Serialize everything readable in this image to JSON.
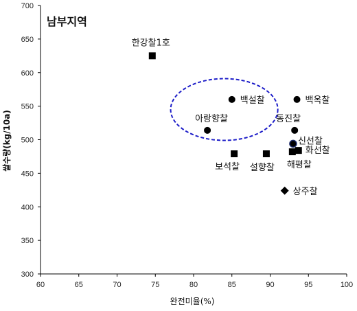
{
  "chart_data": {
    "type": "scatter",
    "title": "남부지역",
    "xlabel": "완전미율(%)",
    "ylabel": "쌀수량(kg/10a)",
    "xlim": [
      60,
      100
    ],
    "ylim": [
      300,
      700
    ],
    "xticks": [
      "60",
      "65",
      "70",
      "75",
      "80",
      "85",
      "90",
      "95",
      "100"
    ],
    "yticks": [
      "300",
      "350",
      "400",
      "450",
      "500",
      "550",
      "600",
      "650",
      "700"
    ],
    "grid": false,
    "points": [
      {
        "label": "한강찰1호",
        "x": 74.6,
        "y": 625,
        "marker": "square"
      },
      {
        "label": "백설찰",
        "x": 85.0,
        "y": 560,
        "marker": "circle"
      },
      {
        "label": "백옥찰",
        "x": 93.5,
        "y": 560,
        "marker": "circle"
      },
      {
        "label": "아랑향찰",
        "x": 81.8,
        "y": 514,
        "marker": "circle"
      },
      {
        "label": "동진찰",
        "x": 93.2,
        "y": 514,
        "marker": "circle"
      },
      {
        "label": "신선찰",
        "x": 93.0,
        "y": 494,
        "marker": "circle-outlined"
      },
      {
        "label": "화선찰",
        "x": 93.7,
        "y": 484,
        "marker": "square"
      },
      {
        "label": "해평찰",
        "x": 92.9,
        "y": 482,
        "marker": "square"
      },
      {
        "label": "보석찰",
        "x": 85.3,
        "y": 479,
        "marker": "square"
      },
      {
        "label": "설향찰",
        "x": 89.5,
        "y": 479,
        "marker": "square"
      },
      {
        "label": "상주찰",
        "x": 91.9,
        "y": 424,
        "marker": "diamond"
      }
    ],
    "highlight_ellipse": {
      "cx": 84.0,
      "cy": 545,
      "rx": 7.0,
      "ry": 46,
      "style": "dashed",
      "color": "#1c1cc8"
    },
    "colors": {
      "marker": "#000000",
      "outlined_ring": "#1c2a6b",
      "ellipse": "#1c1cc8"
    }
  }
}
